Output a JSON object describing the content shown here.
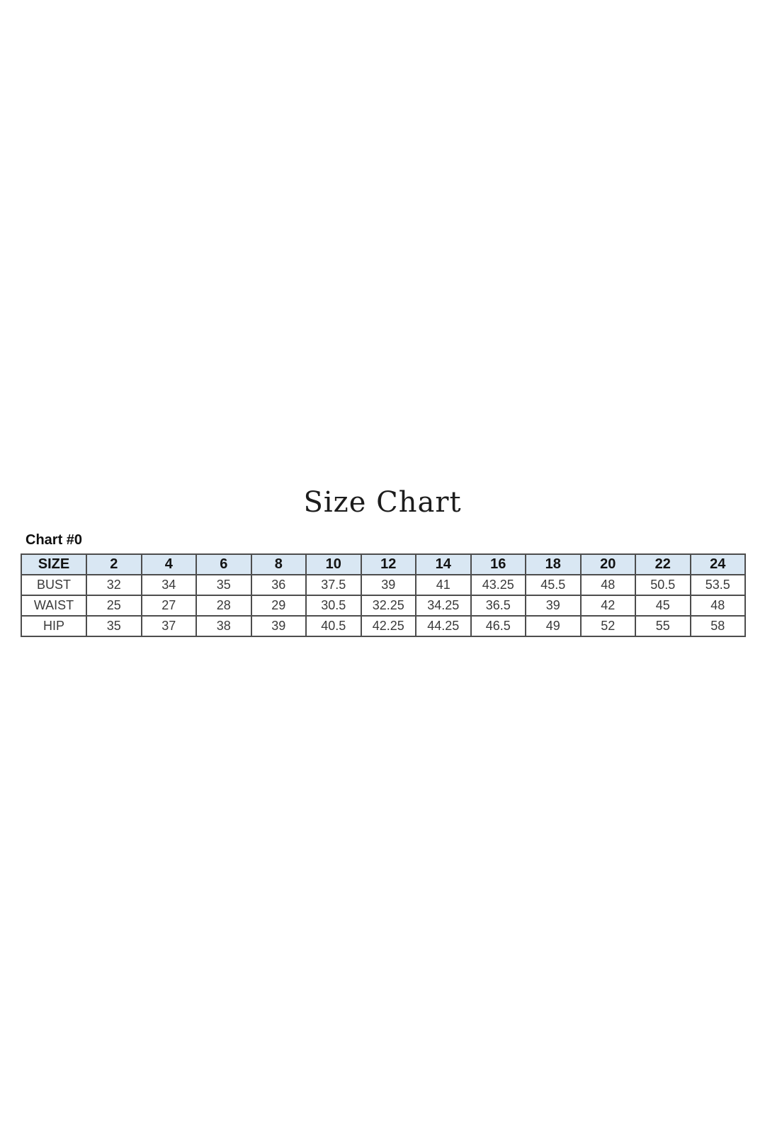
{
  "page": {
    "title": "Size Chart",
    "chart_label": "Chart #0"
  },
  "chart_data": {
    "type": "table",
    "title": "Size Chart",
    "subtitle": "Chart #0",
    "columns": [
      "SIZE",
      "2",
      "4",
      "6",
      "8",
      "10",
      "12",
      "14",
      "16",
      "18",
      "20",
      "22",
      "24"
    ],
    "rows": [
      {
        "label": "BUST",
        "values": [
          "32",
          "34",
          "35",
          "36",
          "37.5",
          "39",
          "41",
          "43.25",
          "45.5",
          "48",
          "50.5",
          "53.5"
        ]
      },
      {
        "label": "WAIST",
        "values": [
          "25",
          "27",
          "28",
          "29",
          "30.5",
          "32.25",
          "34.25",
          "36.5",
          "39",
          "42",
          "45",
          "48"
        ]
      },
      {
        "label": "HIP",
        "values": [
          "35",
          "37",
          "38",
          "39",
          "40.5",
          "42.25",
          "44.25",
          "46.5",
          "49",
          "52",
          "55",
          "58"
        ]
      }
    ],
    "layout": {
      "header_row_shaded": true,
      "grid": "all-borders",
      "first_column_is_row_labels": true
    },
    "colors": {
      "page_bg": "#ffffff",
      "header_bg": "#d9e7f3",
      "border": "#4d4d4d",
      "text": "#3a3a3a"
    }
  }
}
